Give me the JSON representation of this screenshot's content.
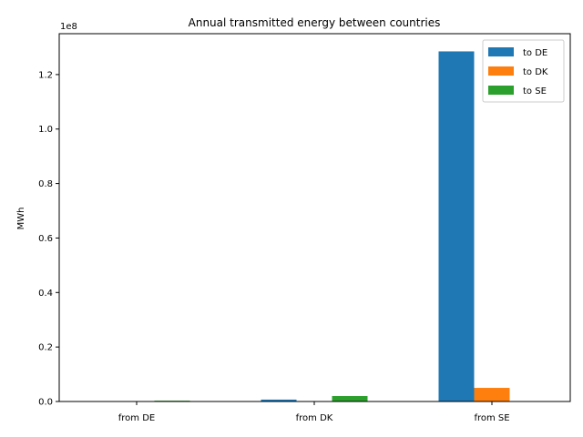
{
  "chart_data": {
    "type": "bar",
    "title": "Annual transmitted energy between countries",
    "xlabel": "",
    "ylabel": "MWh",
    "y_offset_label": "1e8",
    "categories": [
      "from DE",
      "from DK",
      "from SE"
    ],
    "series": [
      {
        "name": "to DE",
        "color": "#1f77b4",
        "values": [
          0,
          700000,
          128500000
        ]
      },
      {
        "name": "to DK",
        "color": "#ff7f0e",
        "values": [
          0,
          0,
          5000000
        ]
      },
      {
        "name": "to SE",
        "color": "#2ca02c",
        "values": [
          300000,
          2000000,
          0
        ]
      }
    ],
    "ylim": [
      0,
      135000000
    ],
    "y_ticks": [
      0,
      20000000,
      40000000,
      60000000,
      80000000,
      100000000,
      120000000
    ],
    "y_tick_labels": [
      "0.0",
      "0.2",
      "0.4",
      "0.6",
      "0.8",
      "1.0",
      "1.2"
    ],
    "legend_position": "top-right",
    "grid": false
  }
}
